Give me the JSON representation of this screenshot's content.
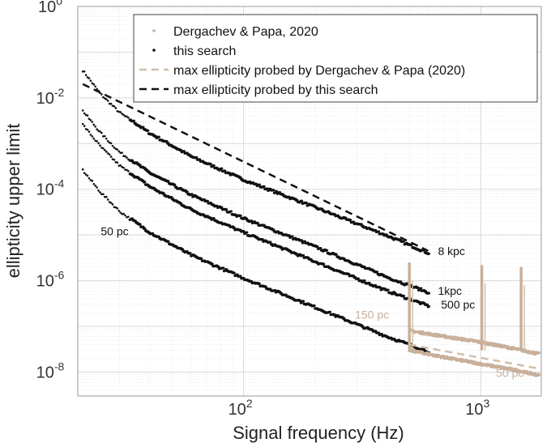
{
  "chart_data": {
    "type": "scatter",
    "xlabel": "Signal frequency (Hz)",
    "ylabel": "ellipticity upper limit",
    "x_scale": "log",
    "y_scale": "log",
    "xlim": [
      20,
      1800
    ],
    "ylim": [
      3e-09,
      1
    ],
    "x_ticks": [
      {
        "value": 100,
        "base": "10",
        "exp": "2"
      },
      {
        "value": 1000,
        "base": "10",
        "exp": "3"
      }
    ],
    "y_ticks": [
      {
        "value": 1e-08,
        "base": "10",
        "exp": "-8"
      },
      {
        "value": 1e-06,
        "base": "10",
        "exp": "-6"
      },
      {
        "value": 0.0001,
        "base": "10",
        "exp": "-4"
      },
      {
        "value": 0.01,
        "base": "10",
        "exp": "-2"
      },
      {
        "value": 1,
        "base": "10",
        "exp": "0"
      }
    ],
    "grid": true,
    "legend_position": "top-right",
    "legend": [
      {
        "label": "Dergachev & Papa, 2020",
        "style": "dot",
        "color": "#c8b09a"
      },
      {
        "label": "this search",
        "style": "dot",
        "color": "#111111"
      },
      {
        "label": "max ellipticity probed by Dergachev & Papa (2020)",
        "style": "dash",
        "color": "#d2bfa8"
      },
      {
        "label": "max ellipticity probed by this search",
        "style": "dash",
        "color": "#111111"
      }
    ],
    "series": [
      {
        "name": "this search",
        "distance": "8 kpc",
        "color": "#111111",
        "x": [
          21,
          25,
          30,
          40,
          60,
          100,
          200,
          400,
          600
        ],
        "y": [
          0.04,
          0.012,
          0.0048,
          0.0017,
          0.00052,
          0.00016,
          4e-05,
          9.7e-06,
          4e-06
        ]
      },
      {
        "name": "this search",
        "distance": "1kpc",
        "color": "#111111",
        "x": [
          21,
          25,
          30,
          40,
          60,
          100,
          200,
          400,
          600
        ],
        "y": [
          0.0052,
          0.0017,
          0.00065,
          0.00023,
          7.5e-05,
          2.3e-05,
          5.5e-06,
          1.2e-06,
          5.5e-07
        ]
      },
      {
        "name": "this search",
        "distance": "500 pc",
        "color": "#111111",
        "x": [
          21,
          25,
          30,
          40,
          60,
          100,
          200,
          400,
          600
        ],
        "y": [
          0.0026,
          0.00085,
          0.00033,
          0.000115,
          3.6e-05,
          1.12e-05,
          2.6e-06,
          6e-07,
          2.8e-07
        ]
      },
      {
        "name": "this search",
        "distance": "50 pc",
        "color": "#111111",
        "x": [
          21,
          25,
          30,
          40,
          60,
          100,
          200,
          400,
          600
        ],
        "y": [
          0.00026,
          8.5e-05,
          3.3e-05,
          1.15e-05,
          3.6e-06,
          1.12e-06,
          2.6e-07,
          6e-08,
          2.8e-08
        ]
      },
      {
        "name": "Dergachev & Papa, 2020",
        "distance": "150 pc",
        "color": "#c8b09a",
        "x": [
          500,
          700,
          1000,
          1400,
          1750
        ],
        "y": [
          8e-08,
          6e-08,
          4.5e-08,
          3.2e-08,
          2.5e-08
        ]
      },
      {
        "name": "Dergachev & Papa, 2020",
        "distance": "50 pc",
        "color": "#c8b09a",
        "x": [
          500,
          700,
          1000,
          1400,
          1750
        ],
        "y": [
          3e-08,
          2.1e-08,
          1.5e-08,
          1.1e-08,
          8.5e-09
        ]
      }
    ],
    "spikes": [
      {
        "x": 500,
        "y_top": 2.5e-06
      },
      {
        "x": 1010,
        "y_top": 2.2e-06
      },
      {
        "x": 1480,
        "y_top": 2e-06
      }
    ],
    "max_lines": [
      {
        "name": "max ellipticity probed by this search",
        "color": "#111111",
        "x": [
          21,
          600
        ],
        "y": [
          0.02,
          4.5e-06
        ]
      },
      {
        "name": "max ellipticity probed by Dergachev & Papa (2020)",
        "color": "#d2bfa8",
        "x": [
          500,
          1750
        ],
        "y": [
          4e-08,
          1.2e-08
        ]
      }
    ],
    "annotations": [
      {
        "text": "8 kpc",
        "x": 660,
        "y": 4.5e-06,
        "color": "#111111"
      },
      {
        "text": "1kpc",
        "x": 660,
        "y": 6e-07,
        "color": "#111111"
      },
      {
        "text": "500 pc",
        "x": 680,
        "y": 3e-07,
        "color": "#111111"
      },
      {
        "text": "50 pc",
        "x": 25,
        "y": 1.2e-05,
        "color": "#111111"
      },
      {
        "text": "150 pc",
        "x": 295,
        "y": 1.8e-07,
        "color": "#c8b09a"
      },
      {
        "text": "50 pc",
        "x": 1160,
        "y": 9.5e-09,
        "color": "#c8b09a"
      }
    ]
  }
}
